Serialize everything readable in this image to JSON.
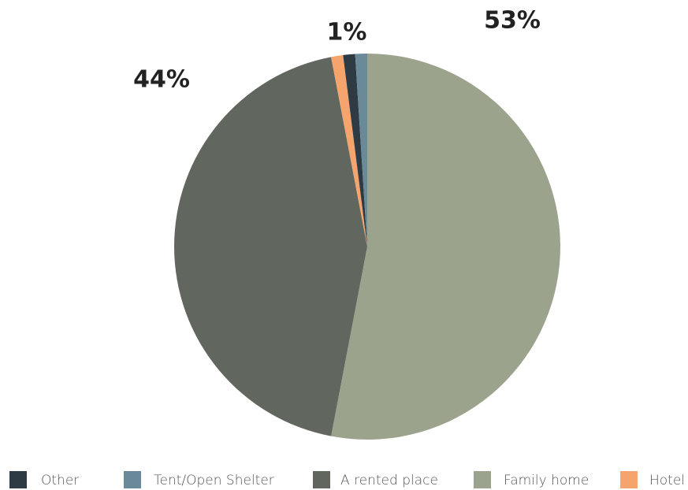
{
  "chart_data": {
    "type": "pie",
    "categories": [
      "Other",
      "Tent/Open Shelter",
      "A rented place",
      "Family home",
      "Hotel"
    ],
    "values": [
      1,
      1,
      44,
      53,
      1
    ],
    "value_labels": [
      null,
      null,
      "44%",
      "53%",
      "1%"
    ],
    "colors": [
      "#2f3b44",
      "#6a8a9a",
      "#61665f",
      "#9ca38d",
      "#f4a46c"
    ],
    "legend": "bottom"
  }
}
